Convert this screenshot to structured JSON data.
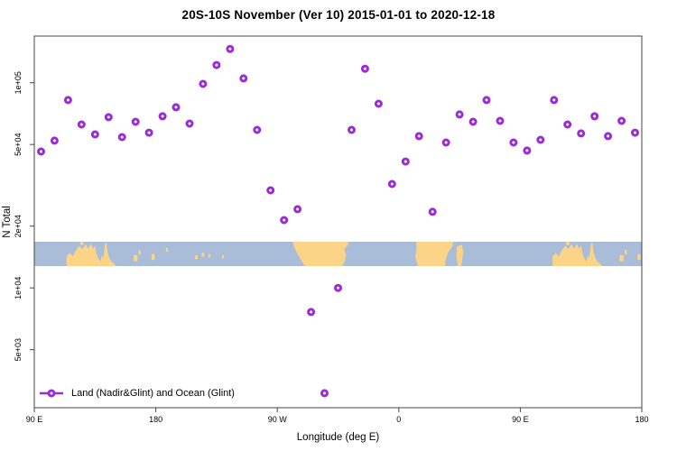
{
  "chart_data": {
    "type": "scatter",
    "title": "20S-10S November (Ver 10)   2015-01-01 to 2020-12-18",
    "xlabel": "Longitude (deg E)",
    "ylabel": "N Total",
    "y_scale": "log",
    "x_range_deg": [
      90,
      540
    ],
    "y_range": [
      2500,
      200000
    ],
    "x_ticks": [
      {
        "lon": 90,
        "label": "90 E"
      },
      {
        "lon": 180,
        "label": "180"
      },
      {
        "lon": 270,
        "label": "90 W"
      },
      {
        "lon": 360,
        "label": "0"
      },
      {
        "lon": 450,
        "label": "90 E"
      },
      {
        "lon": 540,
        "label": "180"
      }
    ],
    "y_ticks": [
      {
        "value": 100000,
        "label": "1e+05"
      },
      {
        "value": 50000,
        "label": "5e+04"
      },
      {
        "value": 20000,
        "label": "2e+04"
      },
      {
        "value": 10000,
        "label": "1e+04"
      },
      {
        "value": 5000,
        "label": "5e+03"
      }
    ],
    "series": [
      {
        "name": "Land (Nadir&Glint) and Ocean (Glint)",
        "marker": "open-circle",
        "color": "#9B2BD3",
        "points_lon_n": [
          [
            95,
            46200
          ],
          [
            105,
            52200
          ],
          [
            115,
            82300
          ],
          [
            125,
            62600
          ],
          [
            135,
            56000
          ],
          [
            145,
            67900
          ],
          [
            155,
            54300
          ],
          [
            165,
            64500
          ],
          [
            175,
            57100
          ],
          [
            185,
            68600
          ],
          [
            195,
            75900
          ],
          [
            205,
            63200
          ],
          [
            215,
            98700
          ],
          [
            225,
            122000
          ],
          [
            235,
            146000
          ],
          [
            245,
            105000
          ],
          [
            255,
            58900
          ],
          [
            265,
            29900
          ],
          [
            275,
            21400
          ],
          [
            285,
            24200
          ],
          [
            295,
            7630
          ],
          [
            305,
            3070
          ],
          [
            315,
            10000
          ],
          [
            325,
            58900
          ],
          [
            335,
            117000
          ],
          [
            345,
            79000
          ],
          [
            355,
            32100
          ],
          [
            365,
            41300
          ],
          [
            375,
            54900
          ],
          [
            385,
            23500
          ],
          [
            395,
            51100
          ],
          [
            405,
            70000
          ],
          [
            415,
            64500
          ],
          [
            425,
            82300
          ],
          [
            435,
            65200
          ],
          [
            445,
            51100
          ],
          [
            455,
            46700
          ],
          [
            465,
            52700
          ],
          [
            475,
            82300
          ],
          [
            485,
            62600
          ],
          [
            495,
            56600
          ],
          [
            505,
            68600
          ],
          [
            515,
            54900
          ],
          [
            525,
            65200
          ],
          [
            535,
            57100
          ]
        ]
      }
    ],
    "map_strip": {
      "description": "world land/ocean band for latitude 20S-10S",
      "ocean_color": "#A9BCD8",
      "land_color": "#FBD488",
      "repeat_offsets_deg": [
        0,
        360
      ],
      "australia_coast": [
        [
          114,
          1
        ],
        [
          113.8,
          0.62
        ],
        [
          116,
          0.45
        ],
        [
          118.5,
          0.6
        ],
        [
          121,
          0.33
        ],
        [
          123.5,
          0.16
        ],
        [
          125.5,
          0.3
        ],
        [
          128,
          0.1
        ],
        [
          130,
          0.28
        ],
        [
          132,
          0.08
        ],
        [
          133.5,
          0.3
        ],
        [
          135,
          0.15
        ],
        [
          136,
          0.5
        ],
        [
          137.5,
          0.68
        ],
        [
          139,
          0.82
        ],
        [
          140,
          0.55
        ],
        [
          141,
          0.68
        ],
        [
          142,
          0.25
        ],
        [
          142.6,
          0.04
        ],
        [
          143.4,
          0.04
        ],
        [
          144.2,
          0.42
        ],
        [
          145.5,
          0.65
        ],
        [
          147,
          0.8
        ],
        [
          149,
          0.9
        ],
        [
          150.5,
          1
        ]
      ],
      "island_rects": [
        [
          124,
          0,
          126.5,
          0.14
        ],
        [
          163.5,
          0.55,
          166.5,
          0.8
        ],
        [
          167.2,
          0.33,
          168.8,
          0.55
        ],
        [
          176.8,
          0.5,
          179.2,
          0.75
        ]
      ],
      "speck_rects": [
        [
          187.5,
          0.25,
          189,
          0.42
        ],
        [
          209,
          0.55,
          211,
          0.72
        ],
        [
          214,
          0.45,
          216,
          0.62
        ],
        [
          219,
          0.5,
          220.5,
          0.66
        ],
        [
          229,
          0.55,
          230.5,
          0.7
        ]
      ],
      "south_america": [
        [
          281.5,
          0
        ],
        [
          322.5,
          0
        ],
        [
          322.5,
          0.12
        ],
        [
          319.5,
          0.3
        ],
        [
          321,
          0.55
        ],
        [
          319.8,
          0.8
        ],
        [
          318,
          1
        ],
        [
          290.5,
          1
        ],
        [
          287,
          0.7
        ],
        [
          284,
          0.4
        ],
        [
          282,
          0.15
        ]
      ],
      "africa": [
        [
          372.8,
          0
        ],
        [
          400.3,
          0
        ],
        [
          399.5,
          0.2
        ],
        [
          396.5,
          0.45
        ],
        [
          394.8,
          0.75
        ],
        [
          394.2,
          1
        ],
        [
          374.2,
          1
        ],
        [
          372.2,
          0.6
        ],
        [
          373.2,
          0.25
        ]
      ],
      "madagascar": [
        [
          403,
          0.2
        ],
        [
          406.8,
          0.12
        ],
        [
          407.8,
          0.45
        ],
        [
          406.2,
          1
        ],
        [
          403.8,
          1
        ],
        [
          402.6,
          0.55
        ]
      ]
    },
    "axis_color": "#444444",
    "text_color": "#000000"
  }
}
